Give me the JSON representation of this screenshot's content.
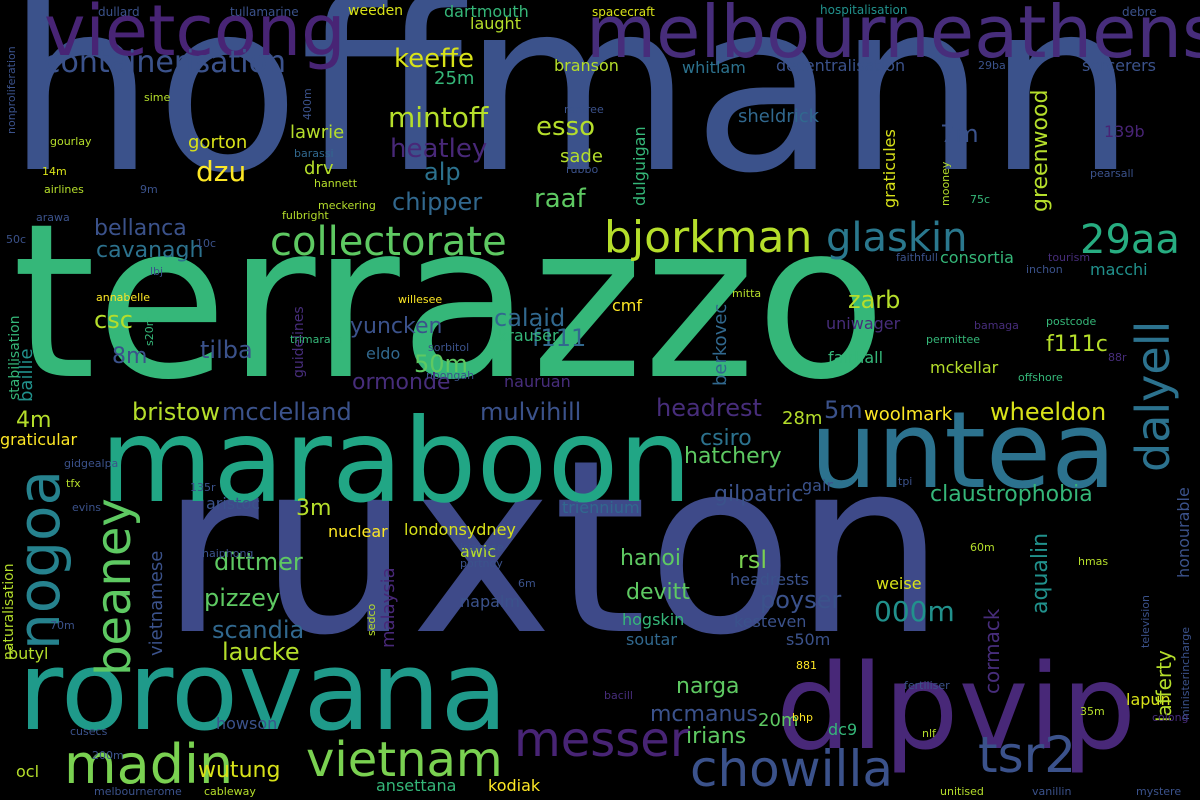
{
  "palette": {
    "background": "#000000",
    "purple": "#440154",
    "indigo": "#3b528b",
    "blue": "#31688e",
    "teal": "#21918c",
    "green": "#35b779",
    "lime": "#90d743",
    "yellow": "#fde725"
  },
  "words": [
    {
      "text": "hoffmann",
      "color": "#3b528b"
    },
    {
      "text": "terrazzo",
      "color": "#35b779"
    },
    {
      "text": "ruxton",
      "color": "#3e4a89"
    },
    {
      "text": "maraboon",
      "color": "#21a685"
    },
    {
      "text": "rorovana",
      "color": "#1f9a8a"
    },
    {
      "text": "untea",
      "color": "#2c728e"
    },
    {
      "text": "dlpvip",
      "color": "#482878"
    },
    {
      "text": "melbourneathens",
      "color": "#472d7b"
    },
    {
      "text": "vietcong",
      "color": "#482475"
    },
    {
      "text": "collectorate",
      "color": "#5ec962"
    },
    {
      "text": "bjorkman",
      "color": "#b5de2b"
    },
    {
      "text": "glaskin",
      "color": "#2a788e"
    },
    {
      "text": "29aa",
      "color": "#27ad81"
    },
    {
      "text": "nogoa",
      "color": "#26828e"
    },
    {
      "text": "beaney",
      "color": "#5ec962"
    },
    {
      "text": "madin",
      "color": "#7ad151"
    },
    {
      "text": "vietnam",
      "color": "#7ad151"
    },
    {
      "text": "messer",
      "color": "#482475"
    },
    {
      "text": "chowilla",
      "color": "#3b528b"
    },
    {
      "text": "tsr2",
      "color": "#3b528b"
    },
    {
      "text": "dalyell",
      "color": "#2c728e"
    },
    {
      "text": "containerisation",
      "color": "#3b528b"
    },
    {
      "text": "keeffe",
      "color": "#d8e219"
    },
    {
      "text": "mintoff",
      "color": "#b5de2b"
    },
    {
      "text": "heatley",
      "color": "#482878"
    },
    {
      "text": "alp",
      "color": "#2c728e"
    },
    {
      "text": "chipper",
      "color": "#31688e"
    },
    {
      "text": "raaf",
      "color": "#5ec962"
    },
    {
      "text": "esso",
      "color": "#b5de2b"
    },
    {
      "text": "dzu",
      "color": "#fde725"
    },
    {
      "text": "bellanca",
      "color": "#3b528b"
    },
    {
      "text": "cavanagh",
      "color": "#2c728e"
    },
    {
      "text": "csc",
      "color": "#b5de2b"
    },
    {
      "text": "8m",
      "color": "#3b528b"
    },
    {
      "text": "tilba",
      "color": "#3b528b"
    },
    {
      "text": "yuncken",
      "color": "#3b528b"
    },
    {
      "text": "calaid",
      "color": "#31688e"
    },
    {
      "text": "f111",
      "color": "#31688e"
    },
    {
      "text": "zarb",
      "color": "#b5de2b"
    },
    {
      "text": "f111c",
      "color": "#b5de2b"
    },
    {
      "text": "50m",
      "color": "#5ec962"
    },
    {
      "text": "ormonde",
      "color": "#472d7b"
    },
    {
      "text": "bristow",
      "color": "#b5de2b"
    },
    {
      "text": "mcclelland",
      "color": "#3b528b"
    },
    {
      "text": "mulvihill",
      "color": "#3b528b"
    },
    {
      "text": "headrest",
      "color": "#472d7b"
    },
    {
      "text": "5m",
      "color": "#3b528b"
    },
    {
      "text": "wheeldon",
      "color": "#d8e219"
    },
    {
      "text": "woolmark",
      "color": "#fde725"
    },
    {
      "text": "28m",
      "color": "#b5de2b"
    },
    {
      "text": "4m",
      "color": "#b5de2b"
    },
    {
      "text": "csiro",
      "color": "#2c728e"
    },
    {
      "text": "hatchery",
      "color": "#5ec962"
    },
    {
      "text": "gilpatric",
      "color": "#3b528b"
    },
    {
      "text": "claustrophobia",
      "color": "#35b779"
    },
    {
      "text": "3m",
      "color": "#b5de2b"
    },
    {
      "text": "dittmer",
      "color": "#5ec962"
    },
    {
      "text": "pizzey",
      "color": "#5ec962"
    },
    {
      "text": "scandia",
      "color": "#31688e"
    },
    {
      "text": "laucke",
      "color": "#b5de2b"
    },
    {
      "text": "hanoi",
      "color": "#5ec962"
    },
    {
      "text": "devitt",
      "color": "#5ec962"
    },
    {
      "text": "rsl",
      "color": "#7ad151"
    },
    {
      "text": "poyser",
      "color": "#3b528b"
    },
    {
      "text": "000m",
      "color": "#21918c"
    },
    {
      "text": "narga",
      "color": "#5ec962"
    },
    {
      "text": "mcmanus",
      "color": "#3b528b"
    },
    {
      "text": "irians",
      "color": "#5ec962"
    },
    {
      "text": "20m",
      "color": "#5ec962"
    },
    {
      "text": "wutung",
      "color": "#d8e219"
    },
    {
      "text": "greenwood",
      "color": "#b5de2b"
    },
    {
      "text": "7m",
      "color": "#3b528b"
    },
    {
      "text": "weeden",
      "color": "#d8e219"
    },
    {
      "text": "laught",
      "color": "#b5de2b"
    },
    {
      "text": "dartmouth",
      "color": "#35b779"
    },
    {
      "text": "branson",
      "color": "#b5de2b"
    },
    {
      "text": "whitlam",
      "color": "#2c728e"
    },
    {
      "text": "decentralisation",
      "color": "#3b528b"
    },
    {
      "text": "sheldrick",
      "color": "#31688e"
    },
    {
      "text": "lawrie",
      "color": "#b5de2b"
    },
    {
      "text": "gorton",
      "color": "#d8e219"
    },
    {
      "text": "drv",
      "color": "#b5de2b"
    },
    {
      "text": "sade",
      "color": "#b5de2b"
    },
    {
      "text": "25m",
      "color": "#35b779"
    },
    {
      "text": "sorcerers",
      "color": "#3b528b"
    },
    {
      "text": "139b",
      "color": "#482475"
    },
    {
      "text": "nuclear",
      "color": "#fde725"
    },
    {
      "text": "londonsydney",
      "color": "#d8e219"
    },
    {
      "text": "triennium",
      "color": "#31688e"
    },
    {
      "text": "aristoc",
      "color": "#3b528b"
    },
    {
      "text": "awic",
      "color": "#b5de2b"
    },
    {
      "text": "napalm",
      "color": "#3b528b"
    },
    {
      "text": "hogskin",
      "color": "#35b779"
    },
    {
      "text": "kesteven",
      "color": "#3b528b"
    },
    {
      "text": "s50m",
      "color": "#3b528b"
    },
    {
      "text": "soutar",
      "color": "#31688e"
    },
    {
      "text": "headrests",
      "color": "#3b528b"
    },
    {
      "text": "weise",
      "color": "#d8e219"
    },
    {
      "text": "howson",
      "color": "#3b528b"
    },
    {
      "text": "ansettana",
      "color": "#35b779"
    },
    {
      "text": "kodiak",
      "color": "#fde725"
    },
    {
      "text": "dc9",
      "color": "#35b779"
    },
    {
      "text": "krauser",
      "color": "#35b779"
    },
    {
      "text": "nauruan",
      "color": "#472d7b"
    },
    {
      "text": "eldo",
      "color": "#31688e"
    },
    {
      "text": "fairhall",
      "color": "#35b779"
    },
    {
      "text": "mckellar",
      "color": "#b5de2b"
    },
    {
      "text": "uniwager",
      "color": "#472d7b"
    },
    {
      "text": "cmf",
      "color": "#fde725"
    },
    {
      "text": "consortia",
      "color": "#35b779"
    },
    {
      "text": "macchi",
      "color": "#21918c"
    },
    {
      "text": "gair",
      "color": "#3b528b"
    },
    {
      "text": "lapun",
      "color": "#d8e219"
    },
    {
      "text": "ocl",
      "color": "#b5de2b"
    },
    {
      "text": "butyl",
      "color": "#b5de2b"
    },
    {
      "text": "graticular",
      "color": "#fde725"
    },
    {
      "text": "stabilisation",
      "color": "#35b779"
    },
    {
      "text": "baillie",
      "color": "#21918c"
    },
    {
      "text": "vietnamese",
      "color": "#3b528b"
    },
    {
      "text": "malaysia",
      "color": "#482878"
    },
    {
      "text": "berkovec",
      "color": "#31688e"
    },
    {
      "text": "dulguigan",
      "color": "#35b779"
    },
    {
      "text": "graticules",
      "color": "#d8e219"
    },
    {
      "text": "honourable",
      "color": "#3b528b"
    },
    {
      "text": "aqualin",
      "color": "#21918c"
    },
    {
      "text": "lafferty",
      "color": "#b5de2b"
    },
    {
      "text": "cormack",
      "color": "#472d7b"
    },
    {
      "text": "naturalisation",
      "color": "#b5de2b"
    },
    {
      "text": "guidelines",
      "color": "#472d7b"
    },
    {
      "text": "hospitalisation",
      "color": "#21918c"
    },
    {
      "text": "spacecraft",
      "color": "#d8e219"
    },
    {
      "text": "tullamarine",
      "color": "#3b528b"
    },
    {
      "text": "dullard",
      "color": "#3b528b"
    },
    {
      "text": "debre",
      "color": "#3b528b"
    },
    {
      "text": "nonproliferation",
      "color": "#3b528b"
    },
    {
      "text": "sime",
      "color": "#b5de2b"
    },
    {
      "text": "gourlay",
      "color": "#b5de2b"
    },
    {
      "text": "14m",
      "color": "#d8e219"
    },
    {
      "text": "airlines",
      "color": "#b5de2b"
    },
    {
      "text": "9m",
      "color": "#3b528b"
    },
    {
      "text": "arawa",
      "color": "#3b528b"
    },
    {
      "text": "50c",
      "color": "#3b528b"
    },
    {
      "text": "barassi",
      "color": "#31688e"
    },
    {
      "text": "hannett",
      "color": "#b5de2b"
    },
    {
      "text": "meckering",
      "color": "#b5de2b"
    },
    {
      "text": "fulbright",
      "color": "#b5de2b"
    },
    {
      "text": "renfree",
      "color": "#3b528b"
    },
    {
      "text": "rubbo",
      "color": "#3b528b"
    },
    {
      "text": "400m",
      "color": "#3b528b"
    },
    {
      "text": "10c",
      "color": "#3b528b"
    },
    {
      "text": "lbj",
      "color": "#3b528b"
    },
    {
      "text": "annabelle",
      "color": "#fde725"
    },
    {
      "text": "willesee",
      "color": "#fde725"
    },
    {
      "text": "s20m",
      "color": "#35b779"
    },
    {
      "text": "trimarans",
      "color": "#35b779"
    },
    {
      "text": "sorbitol",
      "color": "#3b528b"
    },
    {
      "text": "noongah",
      "color": "#3b528b"
    },
    {
      "text": "gidgealpa",
      "color": "#3b528b"
    },
    {
      "text": "tfx",
      "color": "#b5de2b"
    },
    {
      "text": "evins",
      "color": "#3b528b"
    },
    {
      "text": "135r",
      "color": "#3b528b"
    },
    {
      "text": "irianese",
      "color": "#3b528b"
    },
    {
      "text": "portnoy",
      "color": "#3b528b"
    },
    {
      "text": "haiphong",
      "color": "#3b528b"
    },
    {
      "text": "sedco",
      "color": "#b5de2b"
    },
    {
      "text": "6m",
      "color": "#3b528b"
    },
    {
      "text": "70m",
      "color": "#3b528b"
    },
    {
      "text": "cusecs",
      "color": "#3b528b"
    },
    {
      "text": "200m",
      "color": "#3b528b"
    },
    {
      "text": "melbournerome",
      "color": "#3b528b"
    },
    {
      "text": "cableway",
      "color": "#b5de2b"
    },
    {
      "text": "bacill",
      "color": "#472d7b"
    },
    {
      "text": "bhp",
      "color": "#fde725"
    },
    {
      "text": "881",
      "color": "#fde725"
    },
    {
      "text": "fertiliser",
      "color": "#3b528b"
    },
    {
      "text": "nlf",
      "color": "#b5de2b"
    },
    {
      "text": "35m",
      "color": "#b5de2b"
    },
    {
      "text": "unitised",
      "color": "#b5de2b"
    },
    {
      "text": "vanillin",
      "color": "#3b528b"
    },
    {
      "text": "mystere",
      "color": "#3b528b"
    },
    {
      "text": "colong",
      "color": "#472d7b"
    },
    {
      "text": "ministerincharge",
      "color": "#3b528b"
    },
    {
      "text": "television",
      "color": "#3b528b"
    },
    {
      "text": "hmas",
      "color": "#b5de2b"
    },
    {
      "text": "60m",
      "color": "#b5de2b"
    },
    {
      "text": "tpi",
      "color": "#3b528b"
    },
    {
      "text": "faithfull",
      "color": "#3b528b"
    },
    {
      "text": "inchon",
      "color": "#3b528b"
    },
    {
      "text": "tourism",
      "color": "#472d7b"
    },
    {
      "text": "mooney",
      "color": "#b5de2b"
    },
    {
      "text": "75c",
      "color": "#35b779"
    },
    {
      "text": "pearsall",
      "color": "#3b528b"
    },
    {
      "text": "29ba",
      "color": "#3b528b"
    },
    {
      "text": "mitta",
      "color": "#b5de2b"
    },
    {
      "text": "bamaga",
      "color": "#472d7b"
    },
    {
      "text": "postcode",
      "color": "#35b779"
    },
    {
      "text": "permittee",
      "color": "#35b779"
    },
    {
      "text": "88r",
      "color": "#472d7b"
    },
    {
      "text": "offshore",
      "color": "#35b779"
    }
  ]
}
